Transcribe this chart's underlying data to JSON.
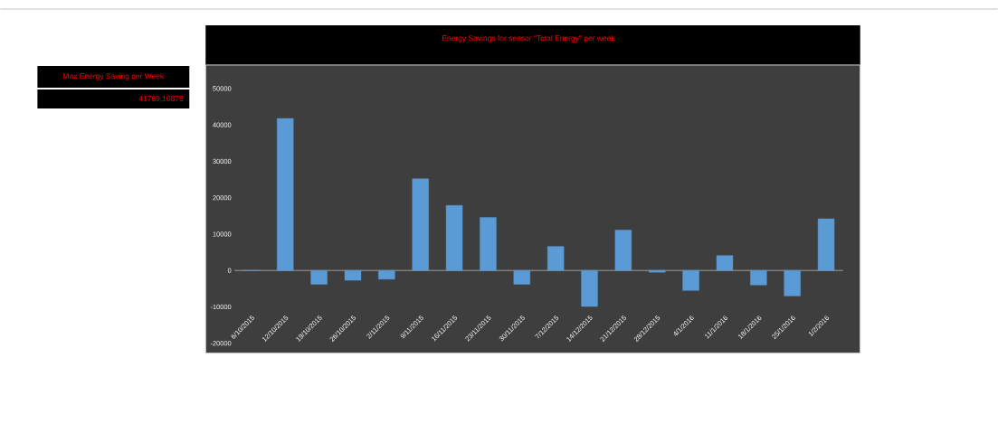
{
  "chart_data": {
    "type": "bar",
    "title": "Energy Savings for  sensor \"Total Energy\"   per week",
    "categories": [
      "6/10/2015",
      "12/10/2015",
      "19/10/2015",
      "26/10/2015",
      "2/11/2015",
      "9/11/2015",
      "16/11/2015",
      "23/11/2015",
      "30/11/2015",
      "7/12/2015",
      "14/12/2015",
      "21/12/2015",
      "28/12/2015",
      "4/1/2016",
      "11/1/2016",
      "18/1/2016",
      "25/1/2016",
      "1/2/2016"
    ],
    "values": [
      0,
      41769,
      -3800,
      -2700,
      -2400,
      25200,
      17900,
      14600,
      -3800,
      6600,
      -9900,
      11100,
      -500,
      -5500,
      4100,
      -4000,
      -7000,
      14200
    ],
    "color": "#5b9bd5",
    "ylim": [
      -20000,
      50000
    ],
    "yticks": [
      -20000,
      -10000,
      0,
      10000,
      20000,
      30000,
      40000,
      50000
    ],
    "annotations": [
      "Max Energy Saving per Week",
      "41769,10875"
    ]
  }
}
